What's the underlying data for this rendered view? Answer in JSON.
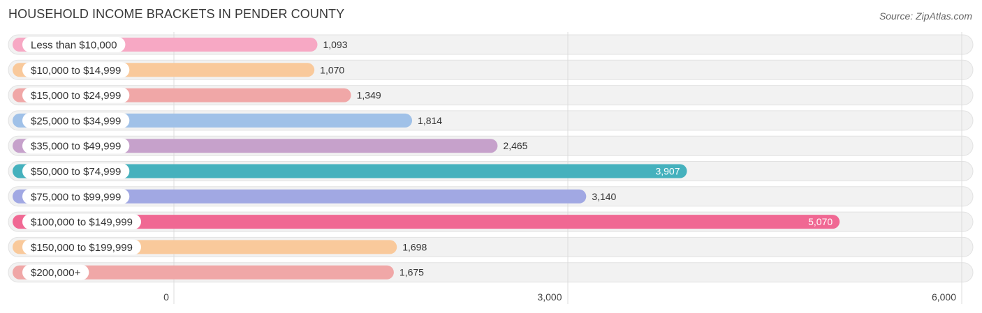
{
  "title": "HOUSEHOLD INCOME BRACKETS IN PENDER COUNTY",
  "source": "Source: ZipAtlas.com",
  "chart_data": {
    "type": "bar",
    "orientation": "horizontal",
    "categories": [
      "Less than $10,000",
      "$10,000 to $14,999",
      "$15,000 to $24,999",
      "$25,000 to $34,999",
      "$35,000 to $49,999",
      "$50,000 to $74,999",
      "$75,000 to $99,999",
      "$100,000 to $149,999",
      "$150,000 to $199,999",
      "$200,000+"
    ],
    "values": [
      1093,
      1070,
      1349,
      1814,
      2465,
      3907,
      3140,
      5070,
      1698,
      1675
    ],
    "value_labels": [
      "1,093",
      "1,070",
      "1,349",
      "1,814",
      "2,465",
      "3,907",
      "3,140",
      "5,070",
      "1,698",
      "1,675"
    ],
    "colors": [
      "#f7a8c4",
      "#f9c99b",
      "#f0a7a7",
      "#a0c1e8",
      "#c6a1cb",
      "#45b1bd",
      "#a1a8e3",
      "#f06893",
      "#f9c99b",
      "#f0a7a7"
    ],
    "xlim": [
      0,
      6000
    ],
    "ticks": [
      0,
      3000,
      6000
    ],
    "tick_labels": [
      "0",
      "3,000",
      "6,000"
    ],
    "grid": true,
    "xlabel": "",
    "ylabel": ""
  }
}
